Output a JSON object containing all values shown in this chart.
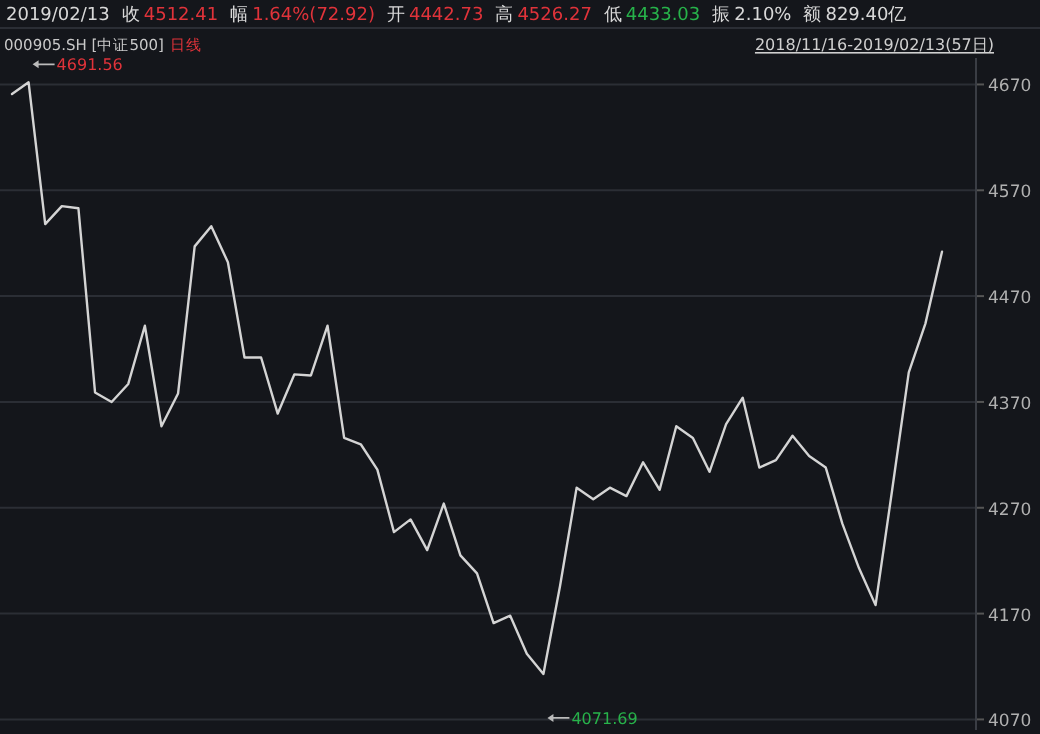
{
  "chart_data": {
    "type": "line",
    "categories": [
      null,
      null,
      null,
      null,
      null,
      null,
      null,
      null,
      null,
      null,
      null,
      null,
      null,
      null,
      null,
      null,
      null,
      null,
      null,
      null,
      null,
      null,
      null,
      null,
      null,
      null,
      null,
      null,
      null,
      null,
      null,
      null,
      null,
      null,
      null,
      null,
      null,
      null,
      null,
      null,
      null,
      null,
      null,
      null,
      null,
      null,
      null,
      null,
      null,
      null,
      null,
      null,
      null,
      null,
      null,
      null,
      null
    ],
    "series": [
      {
        "color": "#d4d4d4",
        "values": [
          4661,
          4672,
          4538,
          4555,
          4553,
          4379,
          4370,
          4387,
          4442,
          4347,
          4378,
          4517,
          4536,
          4502,
          4412,
          4412,
          4359,
          4396,
          4395,
          4442,
          4336,
          4330,
          4306,
          4247,
          4259,
          4230,
          4274,
          4225,
          4208,
          4161,
          4168,
          4132,
          4113,
          4196,
          4289,
          4278,
          4289,
          4281,
          4313,
          4287,
          4347,
          4336,
          4304,
          4349,
          4374,
          4308,
          4315,
          4338,
          4319,
          4308,
          4255,
          4213,
          4178,
          4287,
          4398,
          4444,
          4512
        ]
      }
    ],
    "ylim": [
      4060,
      4695
    ],
    "yticks": [
      4070,
      4170,
      4270,
      4370,
      4470,
      4570,
      4670
    ],
    "grid": "y",
    "marker": "none",
    "line_style": "solid",
    "annotations": [
      "2019/02/13",
      "收",
      "4512.41",
      "幅",
      "1.64%(72.92)",
      "开",
      "4442.73",
      "高",
      "4526.27",
      "低",
      "4433.03",
      "振",
      "2.10%",
      "额",
      "829.40亿",
      "000905.SH [中证500]",
      "日线",
      "2018/11/16-2019/02/13(57日)",
      "4691.56",
      "4071.69"
    ]
  }
}
